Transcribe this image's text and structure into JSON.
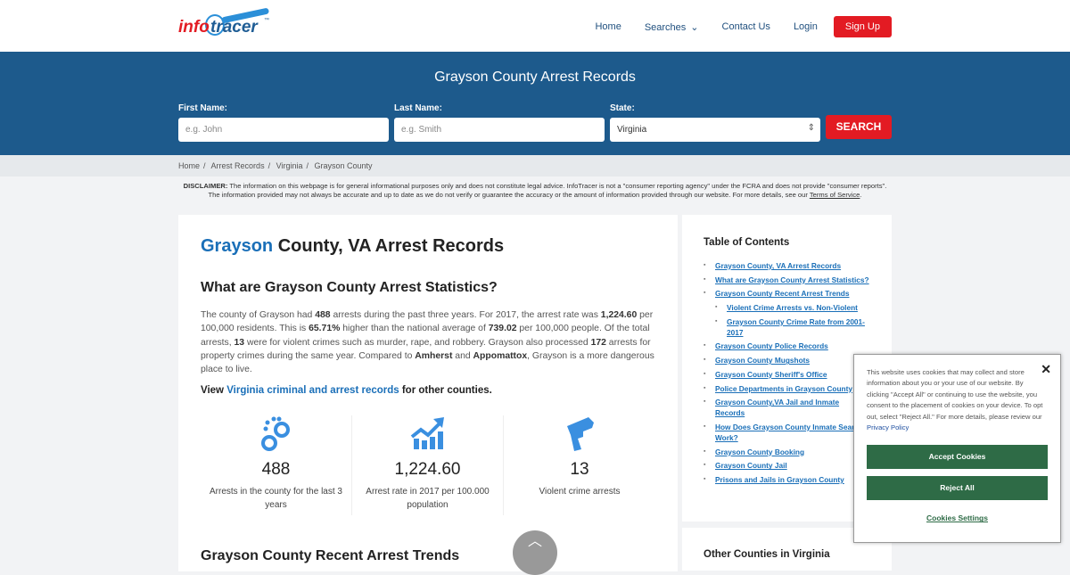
{
  "header": {
    "logo_text_1": "info",
    "logo_text_2": "tracer",
    "logo_tm": "™",
    "nav": [
      "Home",
      "Searches",
      "Contact Us",
      "Login"
    ],
    "signup": "Sign Up"
  },
  "hero": {
    "title": "Grayson County Arrest Records",
    "first_label": "First Name:",
    "first_placeholder": "e.g. John",
    "last_label": "Last Name:",
    "last_placeholder": "e.g. Smith",
    "state_label": "State:",
    "state_value": "Virginia",
    "search": "SEARCH"
  },
  "breadcrumb": [
    "Home",
    "Arrest Records",
    "Virginia",
    "Grayson County"
  ],
  "disclaimer": {
    "label": "DISCLAIMER:",
    "text": " The information on this webpage is for general informational purposes only and does not constitute legal advice. InfoTracer is not a \"consumer reporting agency\" under the FCRA and does not provide \"consumer reports\". The information provided may not always be accurate and up to date as we do not verify or guarantee the accuracy or the amount of information provided through our website. For more details, see our ",
    "link": "Terms of Service",
    "end": "."
  },
  "main": {
    "title_accent": "Grayson",
    "title_rest": " County, VA Arrest Records",
    "h3": "What are Grayson County Arrest Statistics?",
    "p": [
      "The county of Grayson had ",
      "488",
      " arrests during the past three years. For 2017, the arrest rate was ",
      "1,224.60",
      " per 100,000 residents. This is ",
      "65.71%",
      " higher than the national average of ",
      "739.02",
      " per 100,000 people. Of the total arrests, ",
      "13",
      " were for violent crimes such as murder, rape, and robbery. Grayson also processed ",
      "172",
      " arrests for property crimes during the same year. Compared to ",
      "Amherst",
      " and ",
      "Appomattox",
      ", Grayson is a more dangerous place to live."
    ],
    "view_pre": "View ",
    "view_link": "Virginia criminal and arrest records",
    "view_post": " for other counties.",
    "stats": [
      {
        "icon": "handcuffs-icon",
        "num": "488",
        "label": "Arrests in the county for the last 3 years"
      },
      {
        "icon": "chart-trend-icon",
        "num": "1,224.60",
        "label": "Arrest rate in 2017 per 100.000 population"
      },
      {
        "icon": "gun-icon",
        "num": "13",
        "label": "Violent crime arrests"
      }
    ],
    "next_heading": "Grayson County Recent Arrest Trends"
  },
  "toc": {
    "title": "Table of Contents",
    "items": [
      {
        "t": "Grayson County, VA Arrest Records"
      },
      {
        "t": "What are Grayson County Arrest Statistics?"
      },
      {
        "t": "Grayson County Recent Arrest Trends"
      },
      {
        "t": "Violent Crime Arrests vs. Non-Violent",
        "sub": true
      },
      {
        "t": "Grayson County Crime Rate from 2001-2017",
        "sub": true
      },
      {
        "t": "Grayson County Police Records"
      },
      {
        "t": "Grayson County Mugshots"
      },
      {
        "t": "Grayson County Sheriff's Office"
      },
      {
        "t": "Police Departments in Grayson County"
      },
      {
        "t": "Grayson County,VA Jail and Inmate Records"
      },
      {
        "t": "How Does Grayson County Inmate Search Work?"
      },
      {
        "t": "Grayson County Booking"
      },
      {
        "t": "Grayson County Jail"
      },
      {
        "t": "Prisons and Jails in Grayson County"
      }
    ]
  },
  "other": {
    "title": "Other Counties in Virginia"
  },
  "cookie": {
    "text": "This website uses cookies that may collect and store information about you or your use of our website. By clicking \"Accept All\" or continuing to use the website, you consent to the placement of cookies on your device. To opt out, select \"Reject All.\" For more details, please review our ",
    "link": "Privacy Policy",
    "accept": "Accept Cookies",
    "reject": "Reject All",
    "settings": "Cookies Settings",
    "close": "✕"
  }
}
